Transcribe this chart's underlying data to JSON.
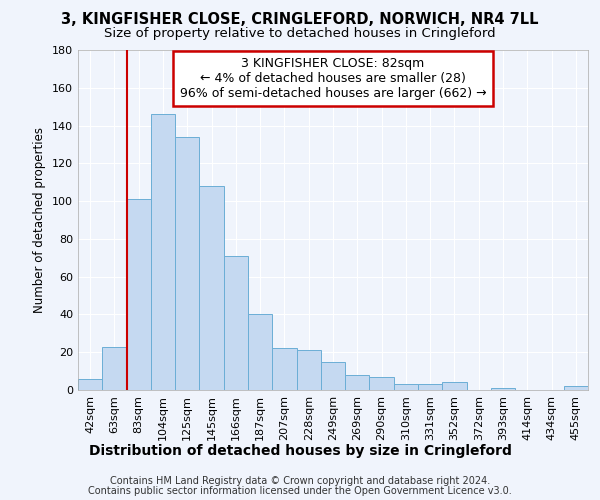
{
  "title": "3, KINGFISHER CLOSE, CRINGLEFORD, NORWICH, NR4 7LL",
  "subtitle": "Size of property relative to detached houses in Cringleford",
  "xlabel": "Distribution of detached houses by size in Cringleford",
  "ylabel": "Number of detached properties",
  "categories": [
    "42sqm",
    "63sqm",
    "83sqm",
    "104sqm",
    "125sqm",
    "145sqm",
    "166sqm",
    "187sqm",
    "207sqm",
    "228sqm",
    "249sqm",
    "269sqm",
    "290sqm",
    "310sqm",
    "331sqm",
    "352sqm",
    "372sqm",
    "393sqm",
    "414sqm",
    "434sqm",
    "455sqm"
  ],
  "values": [
    6,
    23,
    101,
    146,
    134,
    108,
    71,
    40,
    22,
    21,
    15,
    8,
    7,
    3,
    3,
    4,
    0,
    1,
    0,
    0,
    2
  ],
  "bar_color": "#c5d9f1",
  "bar_edge_color": "#6baed6",
  "ylim": [
    0,
    180
  ],
  "yticks": [
    0,
    20,
    40,
    60,
    80,
    100,
    120,
    140,
    160,
    180
  ],
  "annotation_line1": "3 KINGFISHER CLOSE: 82sqm",
  "annotation_line2": "← 4% of detached houses are smaller (28)",
  "annotation_line3": "96% of semi-detached houses are larger (662) →",
  "annotation_box_color": "#ffffff",
  "annotation_box_edge": "#cc0000",
  "vline_color": "#cc0000",
  "vline_x_index": 2,
  "footer1": "Contains HM Land Registry data © Crown copyright and database right 2024.",
  "footer2": "Contains public sector information licensed under the Open Government Licence v3.0.",
  "background_color": "#f0f4fc",
  "grid_color": "#ffffff",
  "title_fontsize": 10.5,
  "subtitle_fontsize": 9.5,
  "xlabel_fontsize": 10,
  "ylabel_fontsize": 8.5,
  "tick_fontsize": 8,
  "annot_fontsize": 9,
  "footer_fontsize": 7
}
